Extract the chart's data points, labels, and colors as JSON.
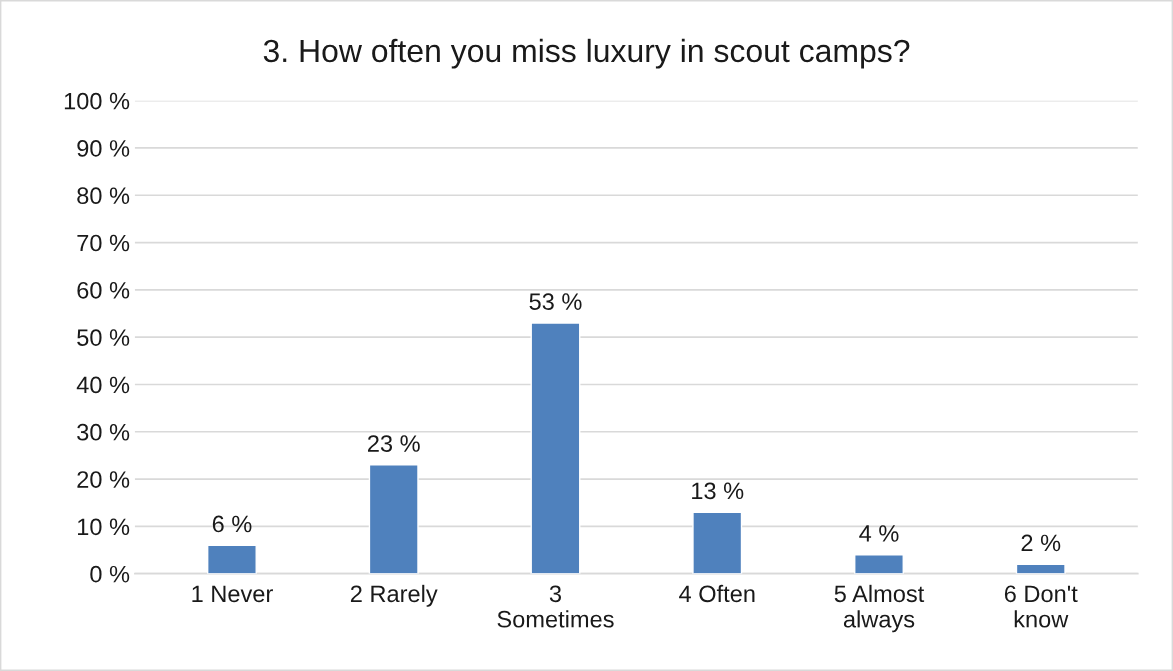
{
  "chart_data": {
    "type": "bar",
    "title": "3. How often you miss luxury in scout camps?",
    "categories": [
      "1 Never",
      "2 Rarely",
      "3\nSometimes",
      "4 Often",
      "5 Almost\nalways",
      "6 Don't\nknow"
    ],
    "values": [
      6,
      23,
      53,
      13,
      4,
      2
    ],
    "value_labels": [
      "6 %",
      "23 %",
      "53 %",
      "13 %",
      "4 %",
      "2 %"
    ],
    "color": "#4f81bd",
    "ylim": [
      0,
      100
    ],
    "yticks": [
      {
        "value": 0,
        "label": "0 %"
      },
      {
        "value": 10,
        "label": "10 %"
      },
      {
        "value": 20,
        "label": "20 %"
      },
      {
        "value": 30,
        "label": "30 %"
      },
      {
        "value": 40,
        "label": "40 %"
      },
      {
        "value": 50,
        "label": "50 %"
      },
      {
        "value": 60,
        "label": "60 %"
      },
      {
        "value": 70,
        "label": "70 %"
      },
      {
        "value": 80,
        "label": "80 %"
      },
      {
        "value": 90,
        "label": "90 %"
      },
      {
        "value": 100,
        "label": "100 %"
      }
    ],
    "grid": "y"
  }
}
